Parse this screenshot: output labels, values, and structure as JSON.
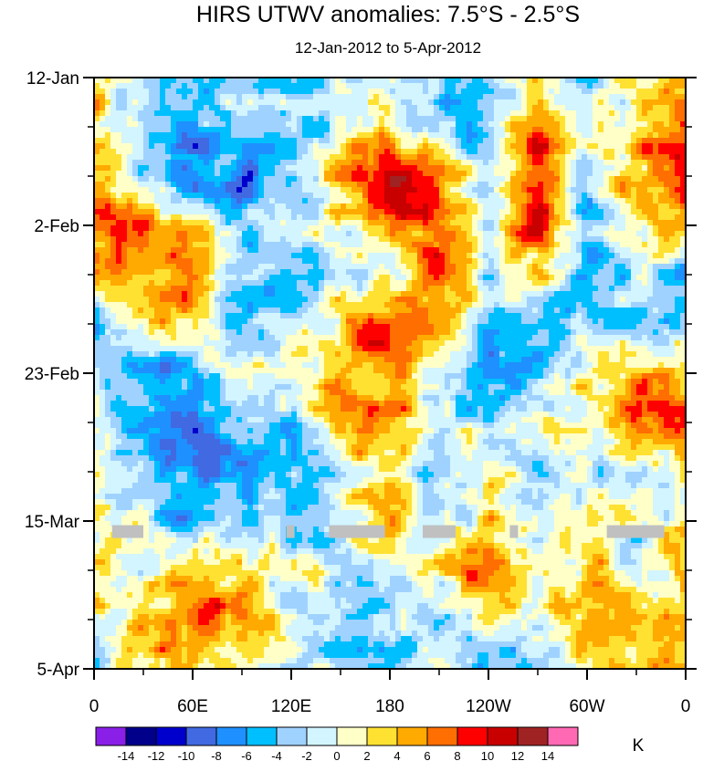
{
  "chart_data": {
    "type": "heatmap",
    "title": "HIRS UTWV anomalies: 7.5°S - 2.5°S",
    "subtitle": "12-Jan-2012 to 5-Apr-2012",
    "xlabel": "",
    "ylabel": "",
    "x_ticks": [
      "0",
      "60E",
      "120E",
      "180",
      "120W",
      "60W",
      "0"
    ],
    "x_tick_values": [
      0,
      60,
      120,
      180,
      240,
      300,
      360
    ],
    "y_ticks": [
      "12-Jan",
      "2-Feb",
      "23-Feb",
      "15-Mar",
      "5-Apr"
    ],
    "y_tick_days": [
      0,
      21,
      42,
      63,
      84
    ],
    "xlim": [
      0,
      360
    ],
    "ylim_days": [
      0,
      84
    ],
    "grid_lon": [
      0,
      30,
      60,
      90,
      120,
      150,
      180,
      210,
      240,
      270,
      300,
      330,
      360
    ],
    "grid_day": [
      0,
      7,
      14,
      21,
      28,
      35,
      42,
      49,
      56,
      63,
      70,
      77,
      84
    ],
    "values": [
      [
        6,
        -4,
        -6,
        -2,
        -4,
        0,
        -2,
        -4,
        -6,
        2,
        -2,
        0,
        6
      ],
      [
        4,
        -4,
        -6,
        -4,
        -4,
        -2,
        2,
        -2,
        -4,
        6,
        -2,
        4,
        6
      ],
      [
        6,
        -2,
        -6,
        -8,
        -4,
        6,
        12,
        6,
        -2,
        10,
        -2,
        6,
        10
      ],
      [
        6,
        8,
        2,
        -4,
        -2,
        0,
        6,
        8,
        -2,
        12,
        -4,
        2,
        4
      ],
      [
        8,
        4,
        6,
        -2,
        -4,
        -2,
        -2,
        10,
        -2,
        2,
        -4,
        -2,
        -4
      ],
      [
        -4,
        2,
        4,
        -4,
        -2,
        4,
        10,
        4,
        -4,
        -6,
        -2,
        -4,
        -4
      ],
      [
        -2,
        -6,
        -6,
        -2,
        2,
        6,
        6,
        0,
        -8,
        -6,
        2,
        6,
        4
      ],
      [
        -2,
        -6,
        -8,
        -4,
        -4,
        4,
        6,
        -2,
        -2,
        2,
        0,
        6,
        6
      ],
      [
        2,
        -4,
        -8,
        -6,
        -4,
        0,
        2,
        -2,
        2,
        -4,
        -2,
        0,
        2
      ],
      [
        2,
        -2,
        -4,
        -4,
        -4,
        -2,
        6,
        -4,
        2,
        -2,
        2,
        -2,
        2
      ],
      [
        4,
        0,
        4,
        4,
        -2,
        0,
        -2,
        2,
        10,
        0,
        4,
        -2,
        4
      ],
      [
        0,
        4,
        8,
        6,
        0,
        -4,
        -2,
        -2,
        4,
        0,
        2,
        4,
        4
      ],
      [
        -2,
        4,
        2,
        2,
        -2,
        -4,
        -6,
        0,
        -6,
        -2,
        2,
        4,
        6
      ]
    ],
    "missing_data": {
      "day": 64.5,
      "lon_ranges": [
        [
          11,
          30
        ],
        [
          117,
          122
        ],
        [
          143,
          177
        ],
        [
          200,
          220
        ],
        [
          253,
          258
        ],
        [
          312,
          347
        ]
      ],
      "color": "#c0c0c0"
    },
    "levels": [
      -14,
      -12,
      -10,
      -8,
      -6,
      -4,
      -2,
      0,
      2,
      4,
      6,
      8,
      10,
      12,
      14
    ],
    "level_labels": [
      "-14",
      "-12",
      "-10",
      "-8",
      "-6",
      "-4",
      "-2",
      "0",
      "2",
      "4",
      "6",
      "8",
      "10",
      "12",
      "14"
    ],
    "colors": [
      "#8a1fe8",
      "#00008b",
      "#0000cd",
      "#4169e1",
      "#1e90ff",
      "#00bfff",
      "#a0d2ff",
      "#d2f5ff",
      "#ffffc8",
      "#ffe132",
      "#ffaa00",
      "#ff6e00",
      "#ff0000",
      "#c80000",
      "#a02323",
      "#ff69b4"
    ],
    "units": "K",
    "legend": "bottom"
  }
}
